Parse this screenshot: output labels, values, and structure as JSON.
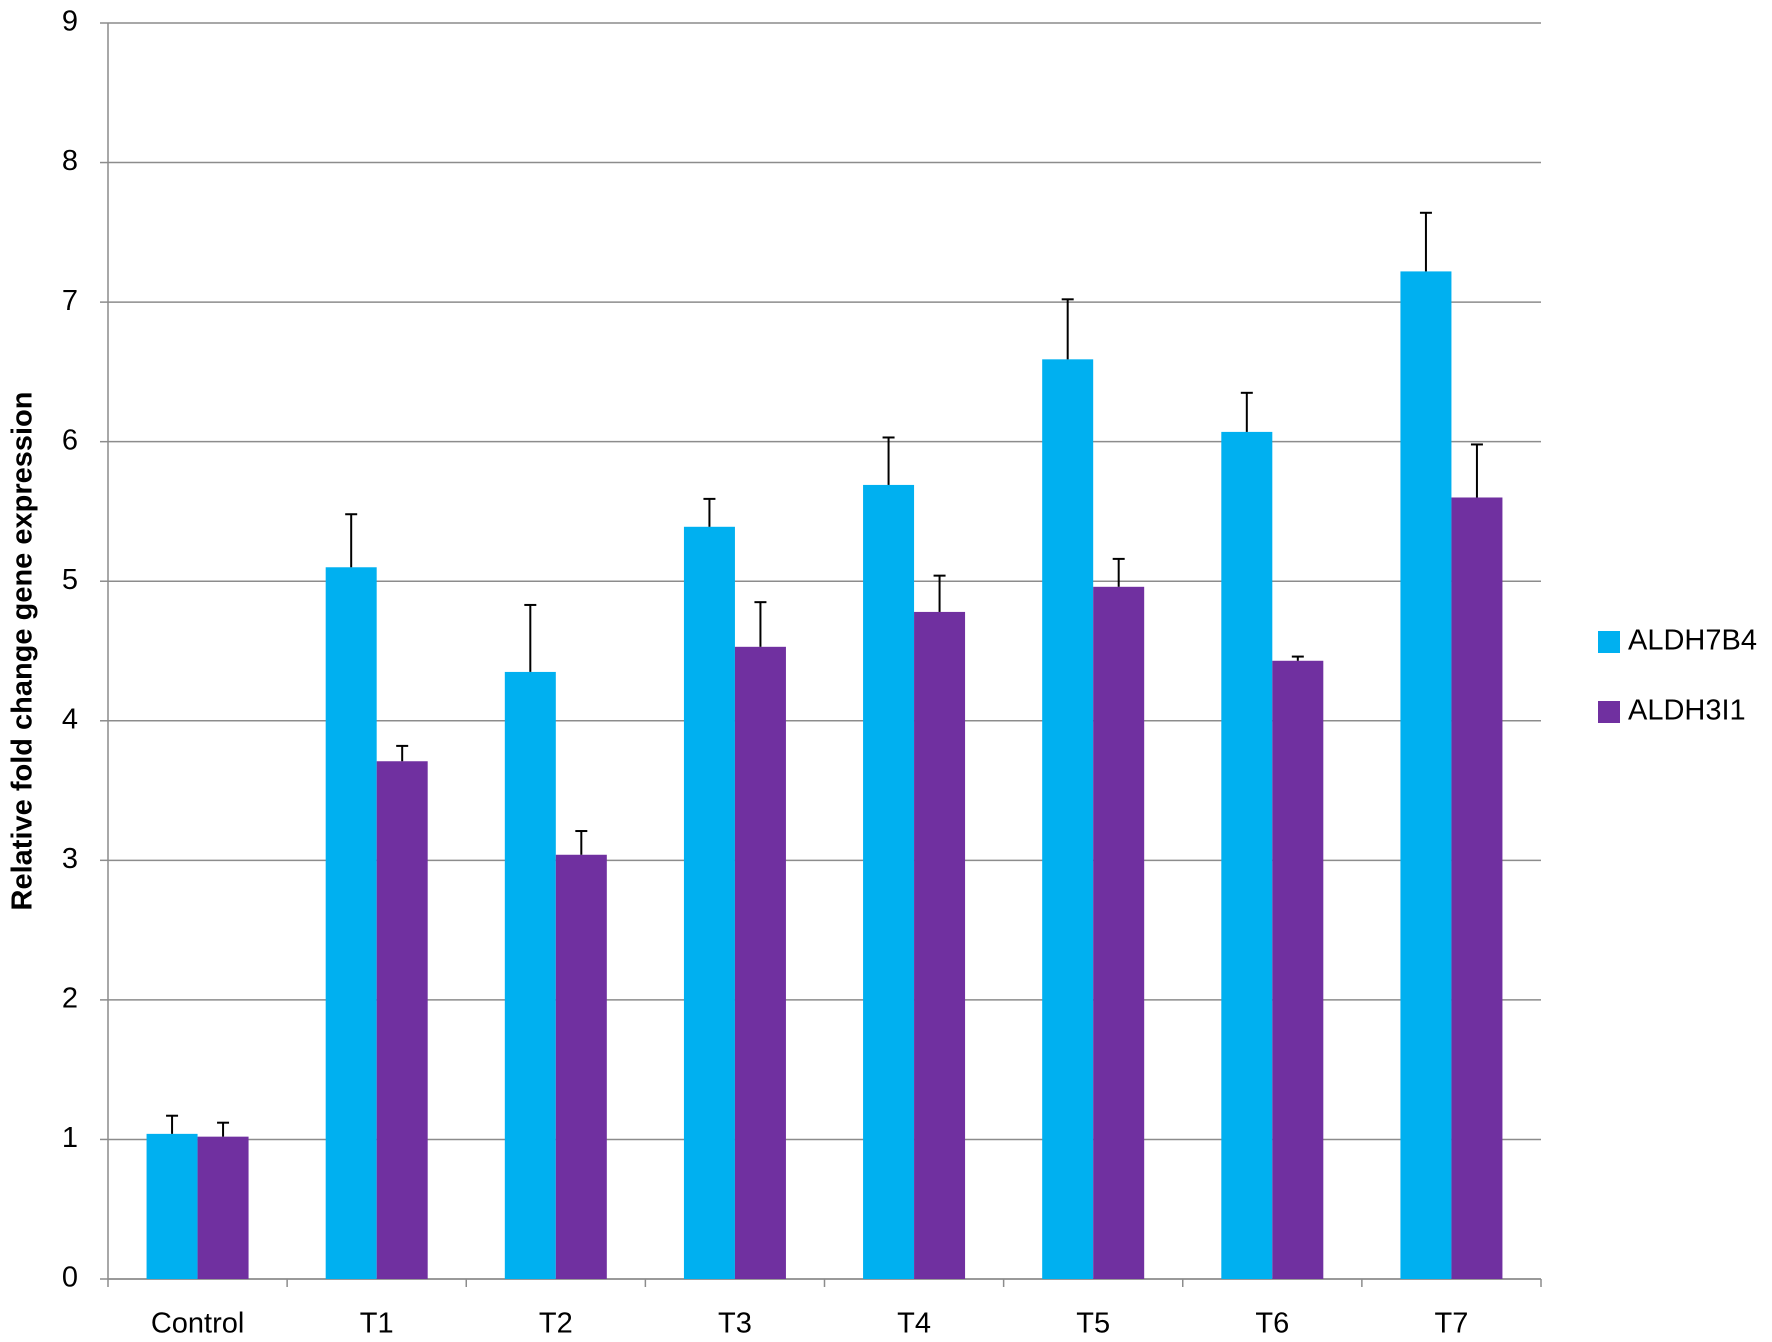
{
  "chart_data": {
    "type": "bar",
    "y_label": "Relative fold change gene expression",
    "categories": [
      "Control",
      "T1",
      "T2",
      "T3",
      "T4",
      "T5",
      "T6",
      "T7"
    ],
    "series": [
      {
        "name": "ALDH7B4",
        "color": "#00b0f0",
        "values": [
          1.04,
          5.1,
          4.35,
          5.39,
          5.69,
          6.59,
          6.07,
          7.22
        ],
        "errors": [
          0.13,
          0.38,
          0.48,
          0.2,
          0.34,
          0.43,
          0.28,
          0.42
        ]
      },
      {
        "name": "ALDH3I1",
        "color": "#7030a0",
        "values": [
          1.02,
          3.71,
          3.04,
          4.53,
          4.78,
          4.96,
          4.43,
          5.6
        ],
        "errors": [
          0.1,
          0.11,
          0.17,
          0.32,
          0.26,
          0.2,
          0.03,
          0.38
        ]
      }
    ],
    "ylim": [
      0,
      9
    ],
    "yticks": [
      0,
      1,
      2,
      3,
      4,
      5,
      6,
      7,
      8,
      9
    ],
    "grid": true,
    "legend": "right"
  }
}
